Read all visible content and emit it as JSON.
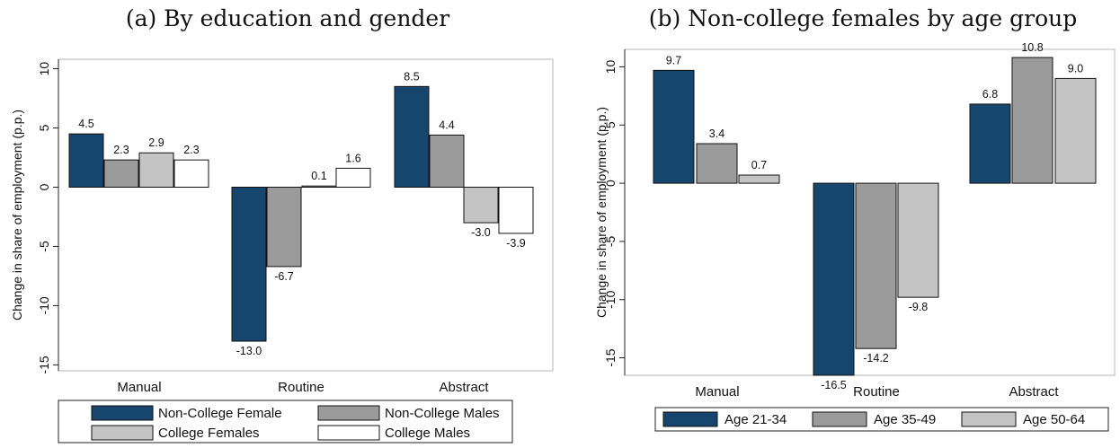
{
  "chart_data": [
    {
      "type": "bar",
      "title": "(a) By education and gender",
      "ylabel": "Change in share of employment (p.p.)",
      "xlabel": "",
      "categories": [
        "Manual",
        "Routine",
        "Abstract"
      ],
      "ylim": [
        -15.5,
        10.8
      ],
      "yticks": [
        10,
        5,
        0,
        -5,
        -10,
        -15
      ],
      "legend_position": "bottom",
      "series": [
        {
          "name": "Non-College Female",
          "values": [
            4.5,
            -13.0,
            8.5
          ],
          "labels": [
            "4.5",
            "-13.0",
            "8.5"
          ],
          "color": "#16466e"
        },
        {
          "name": "Non-College Males",
          "values": [
            2.3,
            -6.7,
            4.4
          ],
          "labels": [
            "2.3",
            "-6.7",
            "4.4"
          ],
          "color": "#9b9b9b"
        },
        {
          "name": "College Females",
          "values": [
            2.9,
            0.1,
            -3.0
          ],
          "labels": [
            "2.9",
            "0.1",
            "-3.0"
          ],
          "color": "#c4c4c4"
        },
        {
          "name": "College Males",
          "values": [
            2.3,
            1.6,
            -3.9
          ],
          "labels": [
            "2.3",
            "1.6",
            "-3.9"
          ],
          "color": "#ffffff"
        }
      ]
    },
    {
      "type": "bar",
      "title": "(b) Non-college females by age group",
      "ylabel": "Change in share of employment (p.p.)",
      "xlabel": "",
      "categories": [
        "Manual",
        "Routine",
        "Abstract"
      ],
      "ylim": [
        -16.5,
        11.5
      ],
      "yticks": [
        10,
        5,
        0,
        -5,
        -10,
        -15
      ],
      "legend_position": "bottom",
      "series": [
        {
          "name": "Age 21-34",
          "values": [
            9.7,
            -16.5,
            6.8
          ],
          "labels": [
            "9.7",
            "-16.5",
            "6.8"
          ],
          "color": "#16466e"
        },
        {
          "name": "Age 35-49",
          "values": [
            3.4,
            -14.2,
            10.8
          ],
          "labels": [
            "3.4",
            "-14.2",
            "10.8"
          ],
          "color": "#9b9b9b"
        },
        {
          "name": "Age 50-64",
          "values": [
            0.7,
            -9.8,
            9.0
          ],
          "labels": [
            "0.7",
            "-9.8",
            "9.0"
          ],
          "color": "#c4c4c4"
        }
      ]
    }
  ]
}
